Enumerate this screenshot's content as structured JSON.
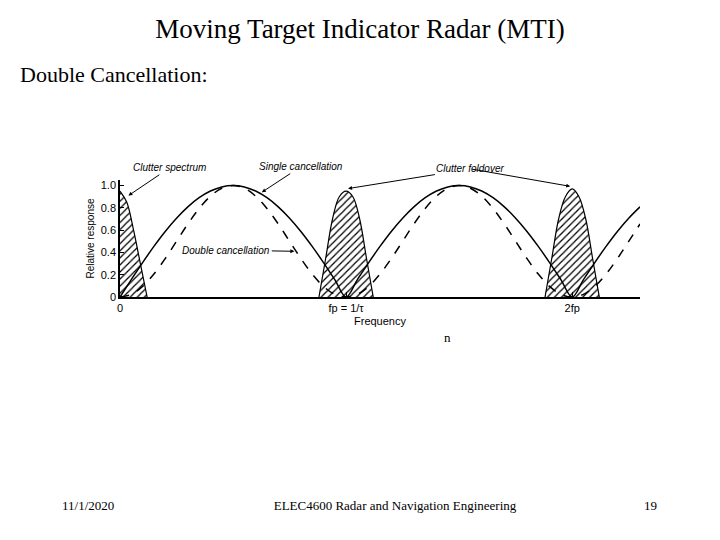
{
  "slide": {
    "title": "Moving Target Indicator Radar (MTI)",
    "subtitle": "Double Cancellation:",
    "stray_text": "n",
    "footer": {
      "date": "11/1/2020",
      "course": "ELEC4600 Radar and Navigation Engineering",
      "page": "19"
    }
  },
  "chart_data": {
    "type": "line",
    "x_label": "Frequency",
    "y_label": "Relative response",
    "x": [
      0,
      0.05,
      0.1,
      0.15,
      0.2,
      0.25,
      0.3,
      0.35,
      0.4,
      0.45,
      0.5,
      0.55,
      0.6,
      0.65,
      0.7,
      0.75,
      0.8,
      0.85,
      0.9,
      0.95,
      1,
      1.05,
      1.1,
      1.15,
      1.2,
      1.25,
      1.3,
      1.35,
      1.4,
      1.45,
      1.5,
      1.55,
      1.6,
      1.65,
      1.7,
      1.75,
      1.8,
      1.85,
      1.9,
      1.95,
      2,
      2.05,
      2.1,
      2.15,
      2.2,
      2.25,
      2.3
    ],
    "series": [
      {
        "name": "Single cancellation",
        "type": "line",
        "line_style": "solid",
        "color": "#000000",
        "values": [
          0,
          0.156,
          0.309,
          0.454,
          0.588,
          0.707,
          0.809,
          0.891,
          0.951,
          0.988,
          1,
          0.988,
          0.951,
          0.891,
          0.809,
          0.707,
          0.588,
          0.454,
          0.309,
          0.156,
          0,
          0.156,
          0.309,
          0.454,
          0.588,
          0.707,
          0.809,
          0.891,
          0.951,
          0.988,
          1,
          0.988,
          0.951,
          0.891,
          0.809,
          0.707,
          0.588,
          0.454,
          0.309,
          0.156,
          0,
          0.156,
          0.309,
          0.454,
          0.588,
          0.707,
          0.809
        ]
      },
      {
        "name": "Double cancellation",
        "type": "line",
        "line_style": "dashed",
        "color": "#000000",
        "values": [
          0,
          0.024,
          0.095,
          0.206,
          0.345,
          0.5,
          0.655,
          0.794,
          0.905,
          0.976,
          1,
          0.976,
          0.905,
          0.794,
          0.655,
          0.5,
          0.345,
          0.206,
          0.095,
          0.024,
          0,
          0.024,
          0.095,
          0.206,
          0.345,
          0.5,
          0.655,
          0.794,
          0.905,
          0.976,
          1,
          0.976,
          0.905,
          0.794,
          0.655,
          0.5,
          0.345,
          0.206,
          0.095,
          0.024,
          0,
          0.024,
          0.095,
          0.206,
          0.345,
          0.5,
          0.655
        ]
      },
      {
        "name": "Clutter spectrum",
        "type": "area",
        "marker": "hatched",
        "color": "#000000",
        "x": [
          0,
          0.03,
          0.06,
          0.09,
          0.12
        ],
        "values": [
          0.95,
          0.85,
          0.6,
          0.3,
          0
        ]
      },
      {
        "name": "Clutter foldover",
        "type": "area",
        "marker": "hatched",
        "color": "#000000",
        "x": [
          0.88,
          0.91,
          0.94,
          0.97,
          1,
          1.03,
          1.06,
          1.09,
          1.12,
          null,
          1.88,
          1.91,
          1.94,
          1.97,
          2,
          2.03,
          2.06,
          2.09,
          2.12
        ],
        "values": [
          0,
          0.35,
          0.7,
          0.9,
          0.95,
          0.9,
          0.7,
          0.35,
          0,
          null,
          0,
          0.35,
          0.7,
          0.9,
          0.97,
          0.9,
          0.7,
          0.35,
          0
        ]
      }
    ],
    "xlim": [
      0,
      2.3
    ],
    "xticks": [
      0,
      {
        "value": 1,
        "label": "fp = 1/τ"
      },
      {
        "value": 2,
        "label": "2fp"
      }
    ],
    "ylim": [
      0,
      1.05
    ],
    "yticks": [
      0,
      0.2,
      0.4,
      0.6,
      0.8,
      {
        "value": 1,
        "label": "1.0"
      }
    ],
    "grid": false
  }
}
